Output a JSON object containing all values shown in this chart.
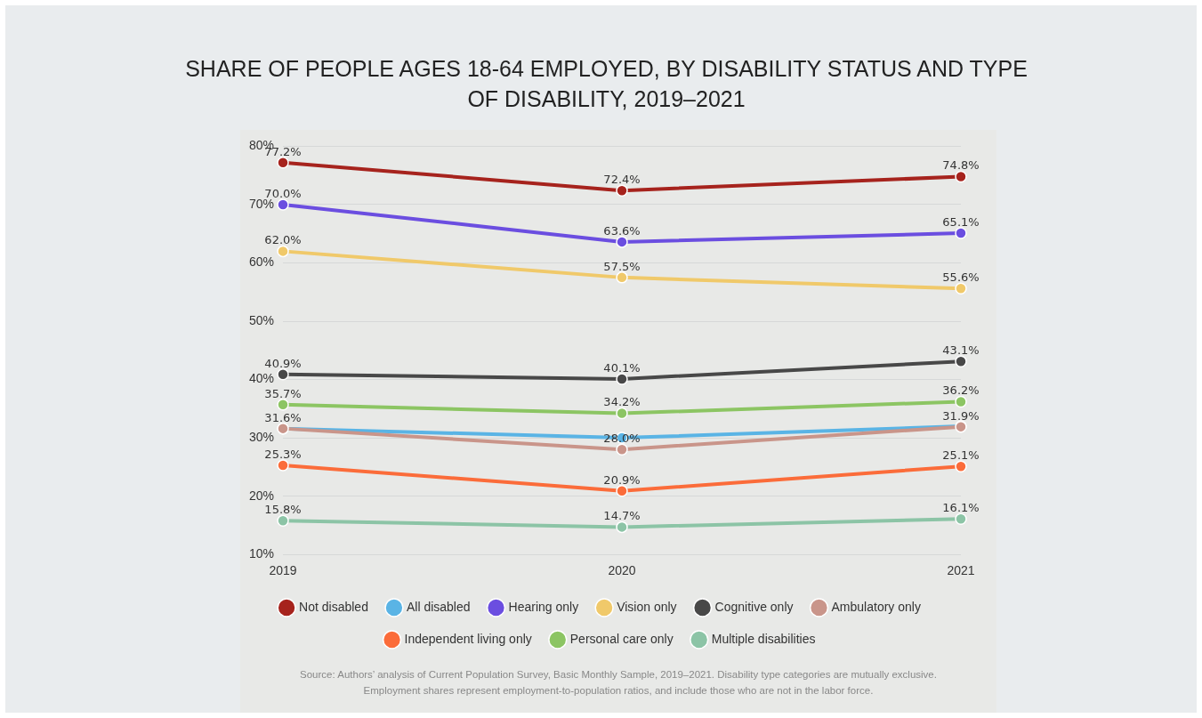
{
  "chart_data": {
    "type": "line",
    "title": "SHARE OF PEOPLE AGES 18-64 EMPLOYED, BY DISABILITY STATUS AND TYPE OF DISABILITY, 2019–2021",
    "categories": [
      "2019",
      "2020",
      "2021"
    ],
    "series": [
      {
        "name": "Not disabled",
        "color": "#a6231d",
        "values": [
          77.2,
          72.4,
          74.8
        ],
        "value_labels": [
          "77.2%",
          "72.4%",
          "74.8%"
        ]
      },
      {
        "name": "All disabled",
        "color": "#5ab4e5",
        "values": [
          31.6,
          30.0,
          32.0
        ],
        "value_labels": [
          null,
          null,
          null
        ]
      },
      {
        "name": "Hearing only",
        "color": "#6b4ee0",
        "values": [
          70.0,
          63.6,
          65.1
        ],
        "value_labels": [
          "70.0%",
          "63.6%",
          "65.1%"
        ]
      },
      {
        "name": "Vision only",
        "color": "#f0c96a",
        "values": [
          62.0,
          57.5,
          55.6
        ],
        "value_labels": [
          "62.0%",
          "57.5%",
          "55.6%"
        ]
      },
      {
        "name": "Cognitive only",
        "color": "#484848",
        "values": [
          40.9,
          40.1,
          43.1
        ],
        "value_labels": [
          "40.9%",
          "40.1%",
          "43.1%"
        ]
      },
      {
        "name": "Ambulatory only",
        "color": "#c9958a",
        "values": [
          31.6,
          28.0,
          31.9
        ],
        "value_labels": [
          "31.6%",
          "28.0%",
          "31.9%"
        ]
      },
      {
        "name": "Independent living only",
        "color": "#fb6c3a",
        "values": [
          25.3,
          20.9,
          25.1
        ],
        "value_labels": [
          "25.3%",
          "20.9%",
          "25.1%"
        ]
      },
      {
        "name": "Personal care only",
        "color": "#8cc563",
        "values": [
          35.7,
          34.2,
          36.2
        ],
        "value_labels": [
          "35.7%",
          "34.2%",
          "36.2%"
        ]
      },
      {
        "name": "Multiple disabilities",
        "color": "#8cc4a6",
        "values": [
          15.8,
          14.7,
          16.1
        ],
        "value_labels": [
          "15.8%",
          "14.7%",
          "16.1%"
        ]
      }
    ],
    "ylim": [
      10,
      80
    ],
    "yticks": [
      {
        "value": 10,
        "label": "10%"
      },
      {
        "value": 20,
        "label": "20%"
      },
      {
        "value": 30,
        "label": "30%"
      },
      {
        "value": 40,
        "label": "40%"
      },
      {
        "value": 50,
        "label": "50%"
      },
      {
        "value": 60,
        "label": "60%"
      },
      {
        "value": 70,
        "label": "70%"
      },
      {
        "value": 80,
        "label": "80%"
      }
    ],
    "grid": "y",
    "legend": "bottom",
    "marker": "circle",
    "line_style": "solid",
    "annotations": [
      "Source: Authors’ analysis of Current Population Survey, Basic Monthly Sample, 2019–2021. Disability type categories are mutually exclusive. Employment shares represent employment-to-population ratios, and include those who are not in the labor force."
    ]
  }
}
